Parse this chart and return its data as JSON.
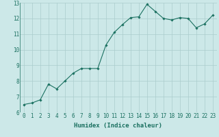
{
  "x": [
    0,
    1,
    2,
    3,
    4,
    5,
    6,
    7,
    8,
    9,
    10,
    11,
    12,
    13,
    14,
    15,
    16,
    17,
    18,
    19,
    20,
    21,
    22,
    23
  ],
  "y": [
    6.5,
    6.6,
    6.8,
    7.8,
    7.5,
    8.0,
    8.5,
    8.8,
    8.8,
    8.8,
    10.3,
    11.1,
    11.6,
    12.05,
    12.1,
    12.9,
    12.45,
    12.0,
    11.9,
    12.05,
    12.0,
    11.4,
    11.65,
    12.2
  ],
  "xlabel": "Humidex (Indice chaleur)",
  "xlim": [
    -0.5,
    23.5
  ],
  "ylim": [
    6,
    13
  ],
  "xticks": [
    0,
    1,
    2,
    3,
    4,
    5,
    6,
    7,
    8,
    9,
    10,
    11,
    12,
    13,
    14,
    15,
    16,
    17,
    18,
    19,
    20,
    21,
    22,
    23
  ],
  "yticks": [
    6,
    7,
    8,
    9,
    10,
    11,
    12,
    13
  ],
  "line_color": "#1a7060",
  "marker": "D",
  "marker_size": 1.8,
  "bg_color": "#cce8e8",
  "grid_color": "#aacccc",
  "xlabel_fontsize": 6.5,
  "tick_fontsize": 5.5,
  "linewidth": 0.8
}
